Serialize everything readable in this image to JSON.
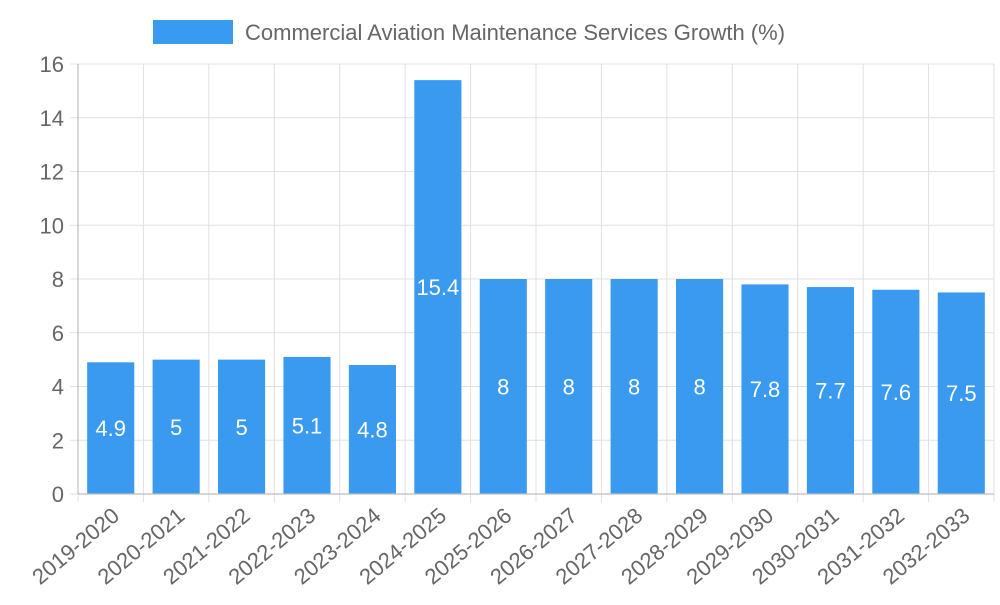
{
  "chart_data": {
    "type": "bar",
    "categories": [
      "2019-2020",
      "2020-2021",
      "2021-2022",
      "2022-2023",
      "2023-2024",
      "2024-2025",
      "2025-2026",
      "2026-2027",
      "2027-2028",
      "2028-2029",
      "2029-2030",
      "2030-2031",
      "2031-2032",
      "2032-2033"
    ],
    "series": [
      {
        "name": "Commercial Aviation Maintenance Services Growth (%)",
        "values": [
          4.9,
          5,
          5,
          5.1,
          4.8,
          15.4,
          8,
          8,
          8,
          8,
          7.8,
          7.7,
          7.6,
          7.5
        ],
        "color": "#3a9af0"
      }
    ],
    "ylim": [
      0,
      16
    ],
    "y_ticks": [
      "0",
      "2",
      "4",
      "6",
      "8",
      "10",
      "12",
      "14",
      "16"
    ],
    "grid": true,
    "legend_position": "top-center",
    "data_labels": true
  }
}
